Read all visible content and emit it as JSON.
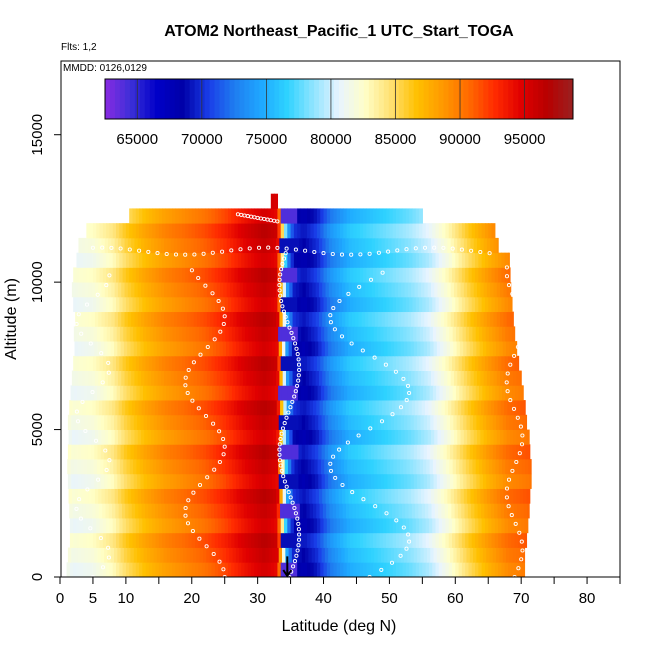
{
  "chart_data": {
    "type": "heatmap",
    "title": "ATOM2 Northeast_Pacific_1 UTC_Start_TOGA",
    "subtitle_flts": "Flts: 1,2",
    "subtitle_mmdd": "MMDD: 0126,0129",
    "xlabel": "Latitude (deg N)",
    "ylabel": "Altitude (m)",
    "xlim": [
      0,
      85
    ],
    "ylim": [
      0,
      17500
    ],
    "x_ticks": [
      0,
      5,
      10,
      20,
      30,
      40,
      50,
      60,
      70,
      80
    ],
    "x_minor_ticks": [
      15,
      25,
      35,
      45,
      55,
      65,
      75,
      85
    ],
    "y_ticks": [
      0,
      5000,
      10000,
      15000
    ],
    "colorbar": {
      "min": 62500,
      "max": 98750,
      "ticks": [
        65000,
        70000,
        75000,
        80000,
        85000,
        90000,
        95000
      ],
      "colors": [
        "#8a2be2",
        "#3b2fd8",
        "#0000c8",
        "#0000a8",
        "#1a3ee8",
        "#1f7ef0",
        "#1fa8ff",
        "#2ed2ff",
        "#8ee4ff",
        "#e8f4ff",
        "#ffffc8",
        "#ffe070",
        "#ffc000",
        "#ff9800",
        "#ff6a00",
        "#ff2a00",
        "#e00000",
        "#b80000",
        "#9a2020"
      ]
    },
    "lat_color_profile": [
      {
        "lat": 0,
        "value": 83000
      },
      {
        "lat": 2,
        "value": 81500
      },
      {
        "lat": 5,
        "value": 82000
      },
      {
        "lat": 8,
        "value": 83500
      },
      {
        "lat": 10,
        "value": 85500
      },
      {
        "lat": 13,
        "value": 87500
      },
      {
        "lat": 16,
        "value": 89000
      },
      {
        "lat": 19,
        "value": 90000
      },
      {
        "lat": 22,
        "value": 91000
      },
      {
        "lat": 25,
        "value": 92500
      },
      {
        "lat": 28,
        "value": 94500
      },
      {
        "lat": 31,
        "value": 96000
      },
      {
        "lat": 33,
        "value": 95000
      },
      {
        "lat": 34.5,
        "value": 74000
      },
      {
        "lat": 35.5,
        "value": 69500
      },
      {
        "lat": 37,
        "value": 68500
      },
      {
        "lat": 39,
        "value": 70000
      },
      {
        "lat": 41,
        "value": 73000
      },
      {
        "lat": 44,
        "value": 75500
      },
      {
        "lat": 47,
        "value": 76500
      },
      {
        "lat": 50,
        "value": 77500
      },
      {
        "lat": 53,
        "value": 78500
      },
      {
        "lat": 56,
        "value": 80000
      },
      {
        "lat": 59,
        "value": 82500
      },
      {
        "lat": 62,
        "value": 85500
      },
      {
        "lat": 65,
        "value": 88000
      },
      {
        "lat": 68,
        "value": 90000
      },
      {
        "lat": 72,
        "value": 91000
      }
    ],
    "altitude_bands": [
      {
        "alt": 0,
        "lat_min": 1.0,
        "lat_max": 70.5
      },
      {
        "alt": 500,
        "lat_min": 1.2,
        "lat_max": 70.5
      },
      {
        "alt": 1000,
        "lat_min": 1.5,
        "lat_max": 70.8
      },
      {
        "alt": 1500,
        "lat_min": 1.5,
        "lat_max": 71.0
      },
      {
        "alt": 2000,
        "lat_min": 1.4,
        "lat_max": 71.2
      },
      {
        "alt": 2500,
        "lat_min": 1.3,
        "lat_max": 71.3
      },
      {
        "alt": 3000,
        "lat_min": 1.2,
        "lat_max": 71.5
      },
      {
        "alt": 3500,
        "lat_min": 1.1,
        "lat_max": 71.5
      },
      {
        "alt": 4000,
        "lat_min": 1.2,
        "lat_max": 71.3
      },
      {
        "alt": 4500,
        "lat_min": 1.3,
        "lat_max": 71.2
      },
      {
        "alt": 5000,
        "lat_min": 1.2,
        "lat_max": 70.8
      },
      {
        "alt": 5500,
        "lat_min": 1.4,
        "lat_max": 70.6
      },
      {
        "alt": 6000,
        "lat_min": 1.6,
        "lat_max": 70.3
      },
      {
        "alt": 6500,
        "lat_min": 1.8,
        "lat_max": 70.0
      },
      {
        "alt": 7000,
        "lat_min": 2.0,
        "lat_max": 69.6
      },
      {
        "alt": 7500,
        "lat_min": 2.2,
        "lat_max": 69.3
      },
      {
        "alt": 8000,
        "lat_min": 2.1,
        "lat_max": 69.0
      },
      {
        "alt": 8500,
        "lat_min": 2.3,
        "lat_max": 68.8
      },
      {
        "alt": 9000,
        "lat_min": 2.0,
        "lat_max": 68.6
      },
      {
        "alt": 9500,
        "lat_min": 1.8,
        "lat_max": 68.4
      },
      {
        "alt": 10000,
        "lat_min": 2.0,
        "lat_max": 68.3
      },
      {
        "alt": 10500,
        "lat_min": 2.5,
        "lat_max": 68.2
      },
      {
        "alt": 11000,
        "lat_min": 2.8,
        "lat_max": 66.5
      },
      {
        "alt": 11500,
        "lat_min": 4.0,
        "lat_max": 66.0
      },
      {
        "alt": 12000,
        "lat_min": 10.5,
        "lat_max": 55.0
      },
      {
        "alt": 12500,
        "lat_min": 32.0,
        "lat_max": 33.0
      }
    ],
    "marker_latitude": 34.5,
    "marker_altitude_top": 700
  }
}
